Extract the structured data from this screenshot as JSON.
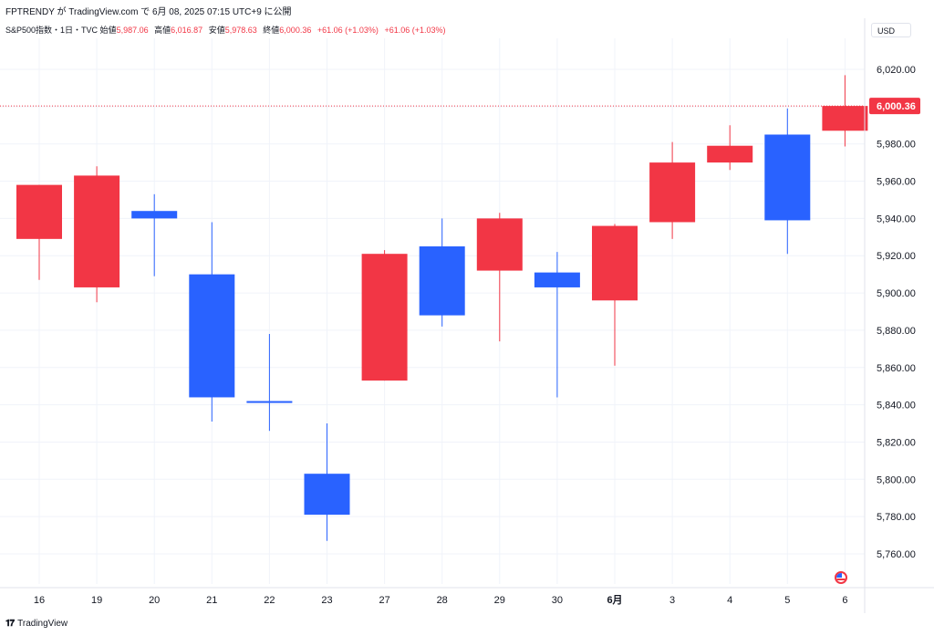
{
  "header": {
    "title": "FPTRENDY が TradingView.com で 6月 08, 2025 07:15 UTC+9 に公開"
  },
  "ohlc": {
    "symbol": "S&P500指数・1日・TVC",
    "open_label": "始値",
    "open_value": "5,987.06",
    "high_label": "高値",
    "high_value": "6,016.87",
    "low_label": "安値",
    "low_value": "5,978.63",
    "close_label": "終値",
    "close_value": "6,000.36",
    "change1": "+61.06 (+1.03%)",
    "change2": "+61.06 (+1.03%)"
  },
  "currency": "USD",
  "footer": {
    "brand": "TradingView"
  },
  "colors": {
    "up": "#f23645",
    "down": "#2962ff",
    "grid": "#f0f3fa"
  },
  "chart_data": {
    "type": "candlestick",
    "categories": [
      "16",
      "19",
      "20",
      "21",
      "22",
      "23",
      "27",
      "28",
      "29",
      "30",
      "6月",
      "3",
      "4",
      "5",
      "6"
    ],
    "candles": [
      {
        "x": "16",
        "open": 5929,
        "high": 5958,
        "low": 5907,
        "close": 5958
      },
      {
        "x": "19",
        "open": 5903,
        "high": 5968,
        "low": 5895,
        "close": 5963
      },
      {
        "x": "20",
        "open": 5944,
        "high": 5953,
        "low": 5909,
        "close": 5940
      },
      {
        "x": "21",
        "open": 5910,
        "high": 5938,
        "low": 5831,
        "close": 5844
      },
      {
        "x": "22",
        "open": 5842,
        "high": 5878,
        "low": 5826,
        "close": 5841
      },
      {
        "x": "23",
        "open": 5803,
        "high": 5830,
        "low": 5767,
        "close": 5781
      },
      {
        "x": "27",
        "open": 5853,
        "high": 5923,
        "low": 5853,
        "close": 5921
      },
      {
        "x": "28",
        "open": 5925,
        "high": 5940,
        "low": 5882,
        "close": 5888
      },
      {
        "x": "29",
        "open": 5912,
        "high": 5943,
        "low": 5874,
        "close": 5940
      },
      {
        "x": "30",
        "open": 5911,
        "high": 5922,
        "low": 5844,
        "close": 5903
      },
      {
        "x": "6月",
        "open": 5896,
        "high": 5937,
        "low": 5861,
        "close": 5936
      },
      {
        "x": "3",
        "open": 5938,
        "high": 5981,
        "low": 5929,
        "close": 5970
      },
      {
        "x": "4",
        "open": 5970,
        "high": 5990,
        "low": 5966,
        "close": 5979
      },
      {
        "x": "5",
        "open": 5985,
        "high": 5999,
        "low": 5921,
        "close": 5939
      },
      {
        "x": "6",
        "open": 5987.06,
        "high": 6016.87,
        "low": 5978.63,
        "close": 6000.36
      }
    ],
    "y_ticks": [
      "6,020.00",
      "5,980.00",
      "5,960.00",
      "5,940.00",
      "5,920.00",
      "5,900.00",
      "5,880.00",
      "5,860.00",
      "5,840.00",
      "5,820.00",
      "5,800.00",
      "5,780.00",
      "5,760.00"
    ],
    "y_tick_values": [
      6020,
      5980,
      5960,
      5940,
      5920,
      5900,
      5880,
      5860,
      5840,
      5820,
      5800,
      5780,
      5760
    ],
    "ylim": [
      5750,
      6030
    ],
    "last_price_label": "6,000.36",
    "last_price_value": 6000.36,
    "grid": true
  }
}
